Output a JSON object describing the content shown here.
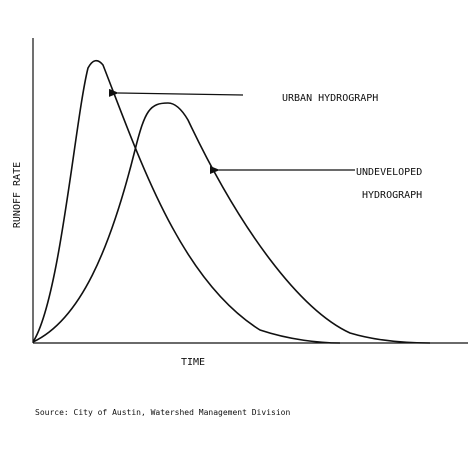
{
  "y_axis_label": "RUNOFF RATE",
  "x_axis_label": "TIME",
  "labels": {
    "urban": "URBAN HYDROGRAPH",
    "undeveloped_line1": "UNDEVELOPED",
    "undeveloped_line2": "HYDROGRAPH"
  },
  "source": "Source: City of Austin, Watershed Management Division"
}
